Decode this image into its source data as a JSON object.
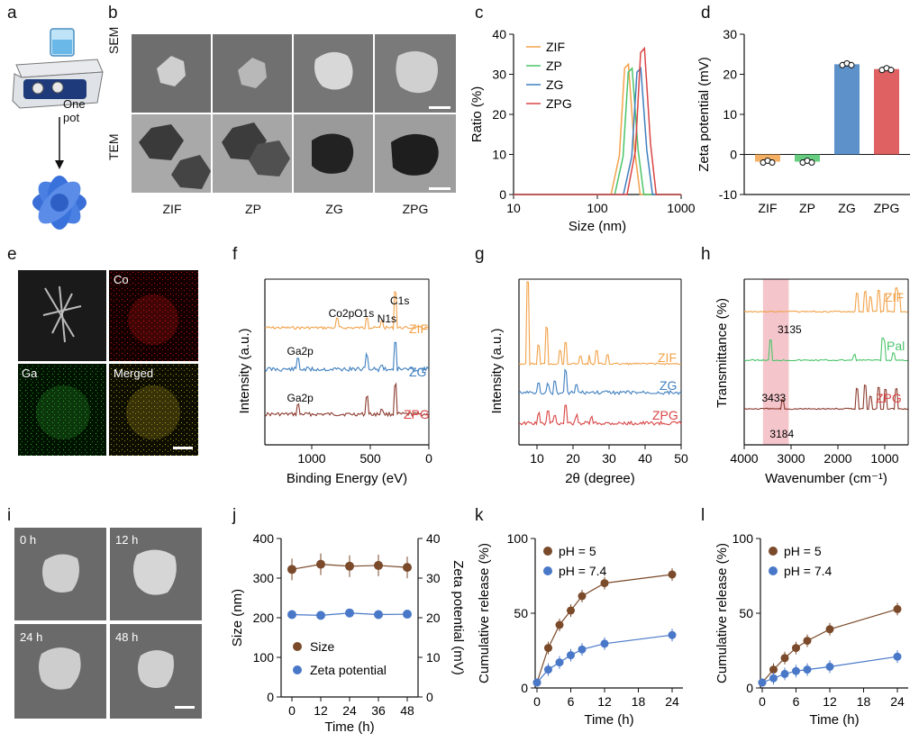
{
  "panel_labels": {
    "a": "a",
    "b": "b",
    "c": "c",
    "d": "d",
    "e": "e",
    "f": "f",
    "g": "g",
    "h": "h",
    "i": "i",
    "j": "j",
    "k": "k",
    "l": "l"
  },
  "panel_a": {
    "note_line1": "One",
    "note_line2": "pot"
  },
  "panel_b": {
    "row_labels": [
      "SEM",
      "TEM"
    ],
    "col_labels": [
      "ZIF",
      "ZP",
      "ZG",
      "ZPG"
    ]
  },
  "panel_e": {
    "tiles": [
      "",
      "Co",
      "Ga",
      "Merged"
    ],
    "colors": {
      "co": "#c81414",
      "ga": "#2fa82f",
      "merged": "#b5a020"
    }
  },
  "panel_i": {
    "times": [
      "0 h",
      "12 h",
      "24 h",
      "48 h"
    ]
  },
  "colors": {
    "zif": "#f2a24a",
    "zp": "#4cc46a",
    "zg": "#3f7fbf",
    "zpg": "#d94545",
    "brown": "#7a4a2a",
    "blue": "#4a78c8",
    "pal": "#4cc46a",
    "zpg_ftir": "#8b3a2e"
  },
  "chart_data": [
    {
      "id": "c",
      "type": "line",
      "title": "",
      "xlabel": "Size (nm)",
      "ylabel": "Ratio (%)",
      "xscale": "log",
      "xlim": [
        10,
        1000
      ],
      "ylim": [
        0,
        40
      ],
      "xticks": [
        "10",
        "100",
        "1000"
      ],
      "yticks": [
        "0",
        "10",
        "20",
        "30",
        "40"
      ],
      "legend": [
        "ZIF",
        "ZP",
        "ZG",
        "ZPG"
      ],
      "series": [
        {
          "name": "ZIF",
          "peak_x": 235,
          "peak_y": 32.5
        },
        {
          "name": "ZP",
          "peak_x": 260,
          "peak_y": 31.5
        },
        {
          "name": "ZG",
          "peak_x": 330,
          "peak_y": 31.5
        },
        {
          "name": "ZPG",
          "peak_x": 365,
          "peak_y": 36.5
        }
      ]
    },
    {
      "id": "d",
      "type": "bar",
      "xlabel": "",
      "ylabel": "Zeta potential (mV)",
      "categories": [
        "ZIF",
        "ZP",
        "ZG",
        "ZPG"
      ],
      "values": [
        -1.8,
        -1.8,
        22.5,
        21.3
      ],
      "ylim": [
        -10,
        30
      ],
      "yticks": [
        "-10",
        "0",
        "10",
        "20",
        "30"
      ]
    },
    {
      "id": "f",
      "type": "line",
      "xlabel": "Binding Energy (eV)",
      "ylabel": "Intensity (a.u.)",
      "xlim": [
        1400,
        0
      ],
      "xticks": [
        "1000",
        "500",
        "0"
      ],
      "legend": [
        "ZIF",
        "ZG",
        "ZPG"
      ],
      "annotations": [
        "Co2p",
        "O1s",
        "N1s",
        "C1s",
        "Ga2p",
        "Ga2p"
      ]
    },
    {
      "id": "g",
      "type": "line",
      "xlabel": "2θ (degree)",
      "ylabel": "Intensity (a.u.)",
      "xlim": [
        5,
        50
      ],
      "xticks": [
        "10",
        "20",
        "30",
        "40",
        "50"
      ],
      "legend": [
        "ZIF",
        "ZG",
        "ZPG"
      ]
    },
    {
      "id": "h",
      "type": "line",
      "xlabel": "Wavenumber (cm⁻¹)",
      "ylabel": "Transmittance (%)",
      "xlim": [
        4000,
        500
      ],
      "xticks": [
        "4000",
        "3000",
        "2000",
        "1000"
      ],
      "legend": [
        "ZIF",
        "Pal",
        "ZPG"
      ],
      "annotations": [
        "3135",
        "3433",
        "3184"
      ]
    },
    {
      "id": "j",
      "type": "line",
      "xlabel": "Time (h)",
      "ylabel": "Size (nm)",
      "y2label": "Zeta potential (mV)",
      "x": [
        0,
        12,
        24,
        36,
        48
      ],
      "xticks": [
        "0",
        "12",
        "24",
        "36",
        "48"
      ],
      "ylim": [
        0,
        400
      ],
      "yticks": [
        "0",
        "100",
        "200",
        "300",
        "400"
      ],
      "y2lim": [
        0,
        40
      ],
      "y2ticks": [
        "0",
        "10",
        "20",
        "30",
        "40"
      ],
      "series": [
        {
          "name": "Size",
          "values": [
            322,
            335,
            330,
            332,
            327
          ]
        },
        {
          "name": "Zeta potential",
          "values": [
            20.8,
            20.6,
            21.2,
            20.8,
            20.9
          ]
        }
      ]
    },
    {
      "id": "k",
      "type": "line",
      "xlabel": "Time (h)",
      "ylabel": "Cumulative release (%)",
      "x": [
        0,
        2,
        4,
        6,
        8,
        12,
        24
      ],
      "xticks": [
        "0",
        "6",
        "12",
        "18",
        "24"
      ],
      "ylim": [
        0,
        100
      ],
      "yticks": [
        "0",
        "50",
        "100"
      ],
      "series": [
        {
          "name": "pH = 5",
          "values": [
            0,
            24,
            40,
            50,
            60,
            69,
            75
          ]
        },
        {
          "name": "pH = 7.4",
          "values": [
            0,
            9,
            14,
            19,
            23,
            27,
            33
          ]
        }
      ]
    },
    {
      "id": "l",
      "type": "line",
      "xlabel": "Time (h)",
      "ylabel": "Cumulative release (%)",
      "x": [
        0,
        2,
        4,
        6,
        8,
        12,
        24
      ],
      "xticks": [
        "0",
        "6",
        "12",
        "18",
        "24"
      ],
      "ylim": [
        0,
        100
      ],
      "yticks": [
        "0",
        "50",
        "100"
      ],
      "series": [
        {
          "name": "pH = 5",
          "values": [
            0,
            9,
            17,
            24,
            29,
            37,
            51
          ]
        },
        {
          "name": "pH = 7.4",
          "values": [
            0,
            3,
            6,
            8,
            9,
            11,
            18
          ]
        }
      ]
    }
  ]
}
